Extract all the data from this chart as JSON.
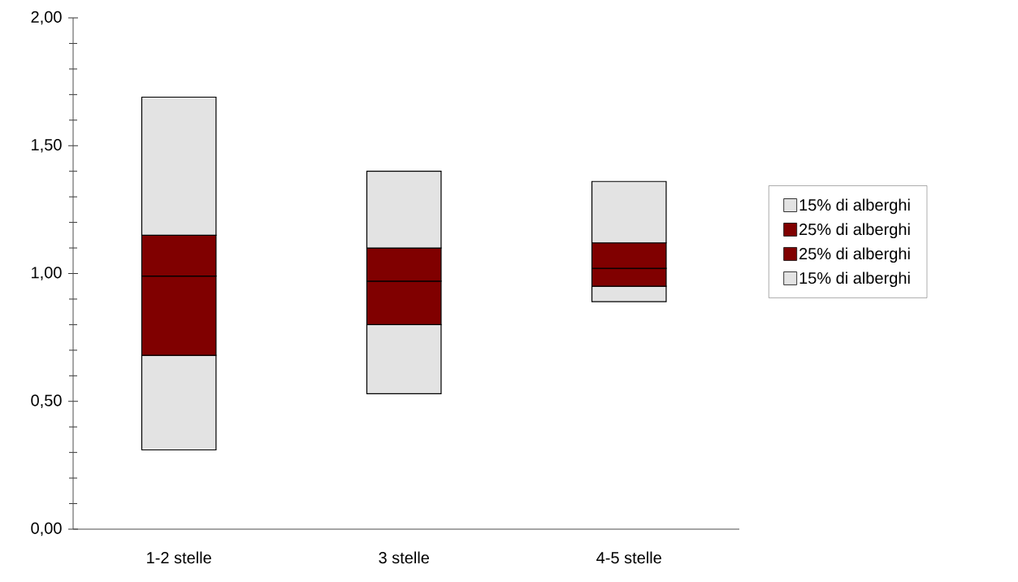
{
  "chart_data": {
    "type": "bar",
    "categories": [
      "1-2 stelle",
      "3 stelle",
      "4-5 stelle"
    ],
    "series": [
      {
        "name": "15% di alberghi",
        "color": "#e3e3e3",
        "base": [
          0.31,
          0.53,
          0.89
        ],
        "values": [
          0.37,
          0.27,
          0.06
        ]
      },
      {
        "name": "25% di alberghi",
        "color": "#800000",
        "base": [
          0.68,
          0.8,
          0.95
        ],
        "values": [
          0.31,
          0.17,
          0.07
        ]
      },
      {
        "name": "25% di alberghi",
        "color": "#800000",
        "base": [
          0.99,
          0.97,
          1.02
        ],
        "values": [
          0.16,
          0.13,
          0.1
        ]
      },
      {
        "name": "15% di alberghi",
        "color": "#e3e3e3",
        "base": [
          1.15,
          1.1,
          1.12
        ],
        "values": [
          0.54,
          0.3,
          0.24
        ]
      }
    ],
    "ylim": [
      0,
      2
    ],
    "yticks": [
      {
        "value": 0,
        "label": "0,00"
      },
      {
        "value": 0.5,
        "label": "0,50"
      },
      {
        "value": 1,
        "label": "1,00"
      },
      {
        "value": 1.5,
        "label": "1,50"
      },
      {
        "value": 2,
        "label": "2,00"
      }
    ],
    "legend": "right"
  }
}
